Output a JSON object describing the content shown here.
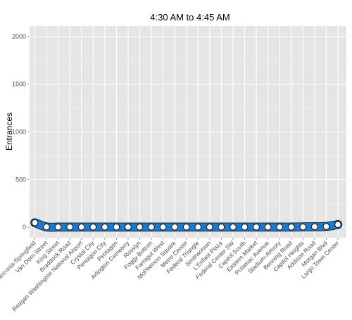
{
  "chart_data": {
    "type": "line",
    "title": "4:30 AM to 4:45 AM",
    "xlabel": "",
    "ylabel": "Entrances",
    "ylim": [
      -110,
      2110
    ],
    "yticks": [
      0,
      500,
      1000,
      1500,
      2000
    ],
    "ytick_labels": [
      "0",
      "500",
      "1000",
      "1500",
      "2000"
    ],
    "grid": true,
    "legend": "none",
    "categories": [
      "Franconia-Springfield",
      "Van Dorn Street",
      "King Street",
      "Braddock Road",
      "Reagan Washington National Airport",
      "Crystal City",
      "Pentagon City",
      "Pentagon",
      "Arlington Cemetery",
      "Rosslyn",
      "Foggy Bottom",
      "Farragut West",
      "McPherson Square",
      "Metro Center",
      "Federal Triangle",
      "Smithsonian",
      "L'Enfant Plaza",
      "Federal Center SW",
      "Capitol South",
      "Eastern Market",
      "Potomac Avenue",
      "Stadium-Armory",
      "Benning Road",
      "Capitol Heights",
      "Addison Road",
      "Morgan Blvd",
      "Largo Town Center"
    ],
    "values": [
      47,
      3,
      2,
      2,
      2,
      2,
      2,
      2,
      2,
      2,
      2,
      2,
      2,
      2,
      2,
      2,
      2,
      2,
      2,
      2,
      2,
      2,
      2,
      3,
      5,
      8,
      28
    ],
    "colors": {
      "panel": "#e5e5e5",
      "grid_major": "#ffffff",
      "grid_minor": "#f2f2f2",
      "ribbon": "#1f78c8",
      "point_fill": "#ffffff",
      "point_stroke": "#000000",
      "tick_text": "#4d4d4d"
    }
  }
}
